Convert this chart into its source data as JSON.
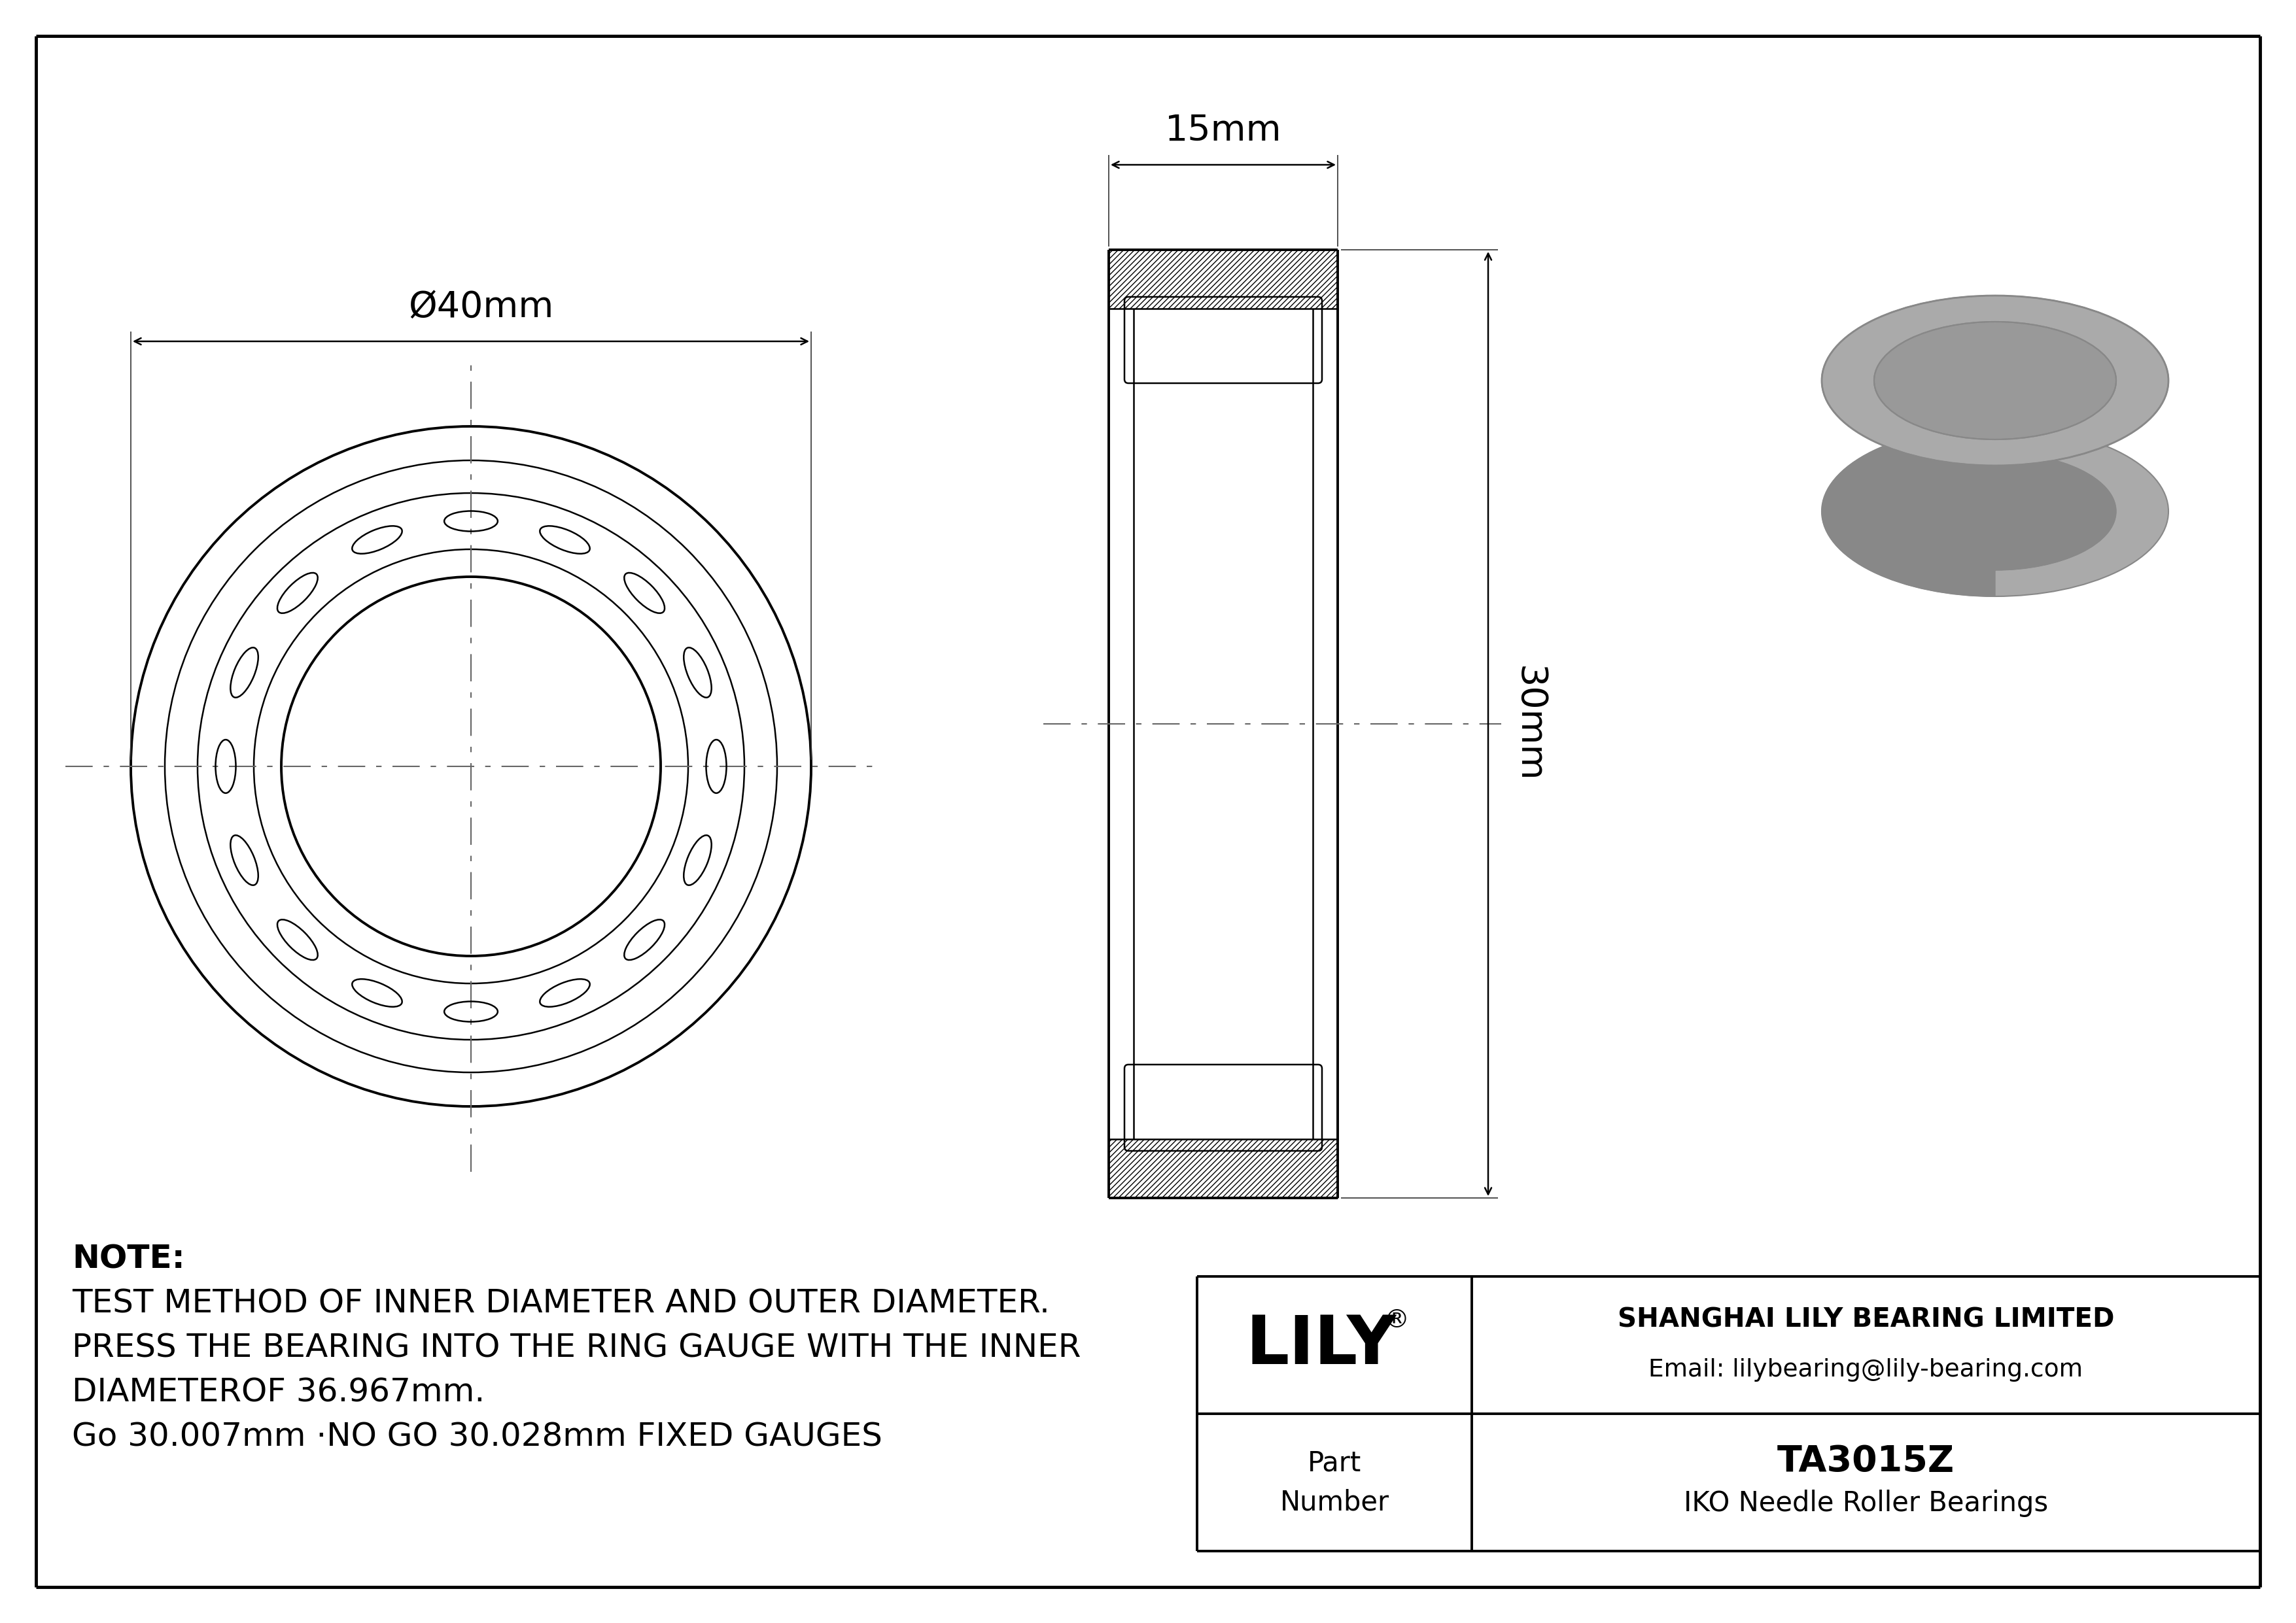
{
  "bg_color": "#ffffff",
  "line_color": "#000000",
  "dim_color": "#000000",
  "gray_3d": "#aaaaaa",
  "gray_3d_dark": "#888888",
  "gray_3d_light": "#bbbbbb",
  "part_number": "TA3015Z",
  "bearing_type": "IKO Needle Roller Bearings",
  "company": "SHANGHAI LILY BEARING LIMITED",
  "email": "Email: lilybearing@lily-bearing.com",
  "lily_logo": "LILY",
  "dim_od": "Ø40mm",
  "dim_width": "15mm",
  "dim_length": "30mm",
  "note_line1": "NOTE:",
  "note_line2": "TEST METHOD OF INNER DIAMETER AND OUTER DIAMETER.",
  "note_line3": "PRESS THE BEARING INTO THE RING GAUGE WITH THE INNER",
  "note_line4": "DIAMETEROF 36.967mm.",
  "note_line5": "Go 30.007mm ·NO GO 30.028mm FIXED GAUGES"
}
